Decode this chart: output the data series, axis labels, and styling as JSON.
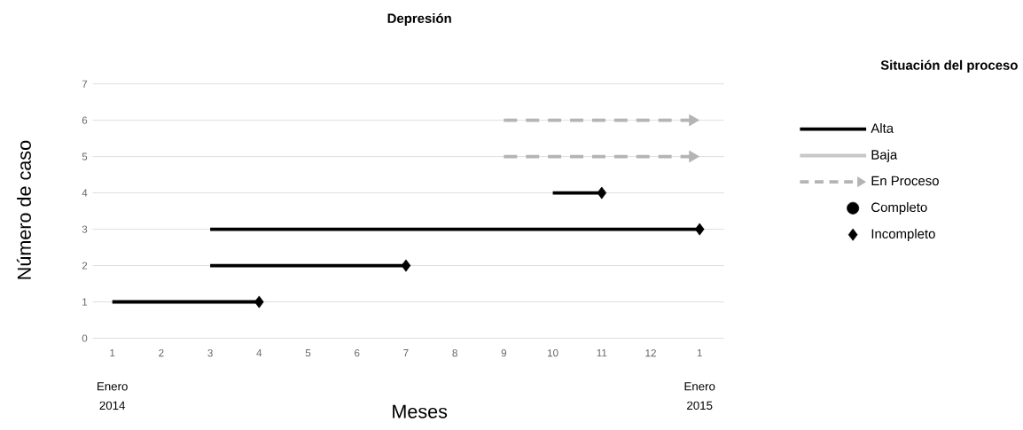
{
  "chart_data": {
    "type": "line",
    "title": "Depresión",
    "xlabel": "Meses",
    "ylabel": "Número de caso",
    "legend_title": "Situación del proceso",
    "xlim": [
      "2013-12-19",
      "2015-01-16"
    ],
    "ylim": [
      0,
      7
    ],
    "yticks": [
      0,
      1,
      2,
      3,
      4,
      5,
      6,
      7
    ],
    "xticks": [
      {
        "value": "2014-01",
        "label": "1"
      },
      {
        "value": "2014-02",
        "label": "2"
      },
      {
        "value": "2014-03",
        "label": "3"
      },
      {
        "value": "2014-04",
        "label": "4"
      },
      {
        "value": "2014-05",
        "label": "5"
      },
      {
        "value": "2014-06",
        "label": "6"
      },
      {
        "value": "2014-07",
        "label": "7"
      },
      {
        "value": "2014-08",
        "label": "8"
      },
      {
        "value": "2014-09",
        "label": "9"
      },
      {
        "value": "2014-10",
        "label": "10"
      },
      {
        "value": "2014-11",
        "label": "11"
      },
      {
        "value": "2014-12",
        "label": "12"
      },
      {
        "value": "2015-01",
        "label": "1"
      }
    ],
    "grid": "y",
    "legend": "right",
    "annotations": [
      "Enero 2014",
      "Enero 2015"
    ],
    "series": [
      {
        "name": "Alta",
        "color": "#000000",
        "line_style": "solid",
        "x": [
          "2014-01",
          "2014-04",
          null,
          "2014-03",
          "2014-07",
          null,
          "2014-03",
          "2015-01",
          null,
          "2014-10",
          "2014-11"
        ],
        "values": [
          1,
          1,
          null,
          2,
          2,
          null,
          3,
          3,
          null,
          4,
          4
        ]
      },
      {
        "name": "Baja",
        "color": "#c8c8c8",
        "line_style": "solid"
      },
      {
        "name": "En Proceso",
        "color": "#b4b4b4",
        "line_style": "dashed",
        "x": [
          "2014-09",
          "2015-01"
        ],
        "values": [
          6,
          6
        ]
      },
      {
        "color": "#b4b4b4",
        "line_style": "dashed",
        "x": [
          "2014-09",
          "2015-01"
        ],
        "values": [
          5,
          5
        ]
      },
      {
        "name": "Completo",
        "type": "scatter",
        "color": "#000000",
        "marker": "circle"
      },
      {
        "name": "Incompleto",
        "type": "scatter",
        "color": "#000000",
        "marker": "diamond",
        "x": [
          "2014-04",
          "2014-07",
          "2015-01",
          "2014-11"
        ],
        "values": [
          1,
          2,
          3,
          4
        ]
      }
    ]
  }
}
